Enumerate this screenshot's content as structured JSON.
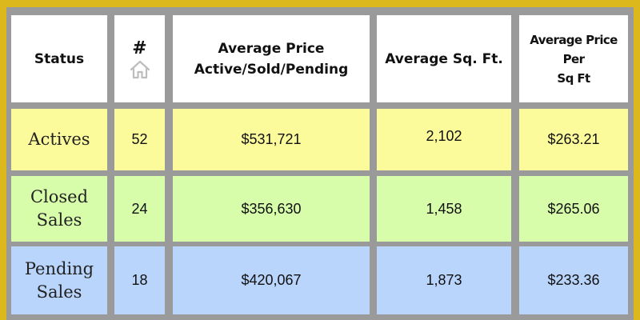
{
  "headers": {
    "status": "Status",
    "count": "#",
    "avg_price_line1": "Average Price",
    "avg_price_line2": "Active/Sold/Pending",
    "avg_sqft": "Average Sq. Ft.",
    "ppsf_line1": "Average Price",
    "ppsf_line2": "Per",
    "ppsf_line3": "Sq Ft",
    "count_icon": "home-icon"
  },
  "rows": [
    {
      "status_line1": "Actives",
      "status_line2": "",
      "count": "52",
      "avg_price": "$531,721",
      "avg_sqft": "2,102",
      "ppsf": "$263.21",
      "color": "#fcfb9c"
    },
    {
      "status_line1": "Closed",
      "status_line2": "Sales",
      "count": "24",
      "avg_price": "$356,630",
      "avg_sqft": "1,458",
      "ppsf": "$265.06",
      "color": "#d7fcaa"
    },
    {
      "status_line1": "Pending",
      "status_line2": "Sales",
      "count": "18",
      "avg_price": "$420,067",
      "avg_sqft": "1,873",
      "ppsf": "$233.36",
      "color": "#b9d5fb"
    }
  ],
  "colors": {
    "border": "#dcb81c",
    "grid": "#9a9a9a",
    "header_bg": "#ffffff"
  }
}
